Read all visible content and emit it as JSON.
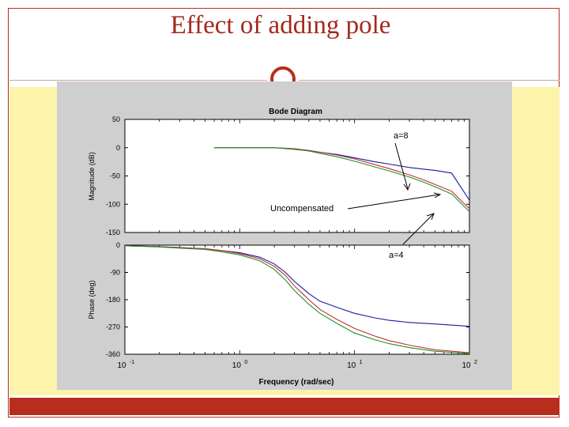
{
  "slide": {
    "title": "Effect of adding pole"
  },
  "colors": {
    "accent": "#b82e1c",
    "title": "#a3281c",
    "background_band": "#fdf4ac",
    "plot_panel": "#cfcfcf"
  },
  "chart_data": {
    "type": "line",
    "title": "Bode Diagram",
    "xlabel": "Frequency (rad/sec)",
    "xscale": "log",
    "xlim": [
      0.1,
      100
    ],
    "x_ticks": [
      {
        "base": "10",
        "exp": "-1"
      },
      {
        "base": "10",
        "exp": "0"
      },
      {
        "base": "10",
        "exp": "1"
      },
      {
        "base": "10",
        "exp": "2"
      }
    ],
    "grid": false,
    "legend": "none",
    "panels": [
      {
        "name": "magnitude",
        "ylabel": "Magnitude (dB)",
        "ylim": [
          -150,
          50
        ],
        "y_ticks": [
          "50",
          "0",
          "-50",
          "-100",
          "-150"
        ],
        "series": [
          {
            "color": "#1a1aa0",
            "x": [
              0.6,
              1,
              2,
              3,
              4,
              5,
              7,
              10,
              15,
              20,
              30,
              40,
              50,
              70,
              100
            ],
            "y": [
              0,
              0,
              0,
              -2,
              -5,
              -8,
              -12,
              -18,
              -25,
              -29,
              -35,
              -38,
              -40,
              -45,
              -93
            ]
          },
          {
            "color": "#c03030",
            "x": [
              0.6,
              1,
              2,
              3,
              4,
              5,
              7,
              10,
              15,
              20,
              30,
              40,
              50,
              70,
              100
            ],
            "y": [
              0,
              0,
              0,
              -2,
              -5,
              -8,
              -13,
              -20,
              -30,
              -37,
              -48,
              -57,
              -65,
              -77,
              -108
            ]
          },
          {
            "color": "#20902a",
            "x": [
              0.6,
              1,
              2,
              3,
              4,
              5,
              7,
              10,
              15,
              20,
              30,
              40,
              50,
              70,
              100
            ],
            "y": [
              0,
              0,
              0,
              -3,
              -6,
              -10,
              -16,
              -24,
              -34,
              -41,
              -52,
              -61,
              -69,
              -82,
              -113
            ]
          }
        ],
        "annotations": [
          {
            "text": "a=8"
          },
          {
            "text": "Uncompensated"
          },
          {
            "text": "a=4"
          }
        ]
      },
      {
        "name": "phase",
        "ylabel": "Phase (deg)",
        "ylim": [
          -360,
          0
        ],
        "y_ticks": [
          "0",
          "-90",
          "-180",
          "-270",
          "-360"
        ],
        "series": [
          {
            "color": "#1a1aa0",
            "x": [
              0.1,
              0.2,
              0.3,
              0.5,
              0.7,
              1,
              1.5,
              2,
              2.5,
              3,
              4,
              5,
              7,
              10,
              15,
              20,
              30,
              50,
              100
            ],
            "y": [
              -2,
              -5,
              -8,
              -12,
              -18,
              -25,
              -40,
              -62,
              -90,
              -120,
              -160,
              -185,
              -205,
              -225,
              -240,
              -248,
              -255,
              -260,
              -268
            ]
          },
          {
            "color": "#c03030",
            "x": [
              0.1,
              0.2,
              0.3,
              0.5,
              0.7,
              1,
              1.5,
              2,
              2.5,
              3,
              4,
              5,
              7,
              10,
              15,
              20,
              30,
              50,
              100
            ],
            "y": [
              -2,
              -5,
              -8,
              -12,
              -18,
              -28,
              -45,
              -70,
              -100,
              -135,
              -180,
              -212,
              -245,
              -275,
              -300,
              -315,
              -330,
              -345,
              -355
            ]
          },
          {
            "color": "#20902a",
            "x": [
              0.1,
              0.2,
              0.3,
              0.5,
              0.7,
              1,
              1.5,
              2,
              2.5,
              3,
              4,
              5,
              7,
              10,
              15,
              20,
              30,
              50,
              100
            ],
            "y": [
              -2,
              -6,
              -10,
              -14,
              -22,
              -32,
              -52,
              -80,
              -115,
              -150,
              -195,
              -225,
              -258,
              -290,
              -312,
              -325,
              -338,
              -350,
              -358
            ]
          }
        ]
      }
    ]
  }
}
